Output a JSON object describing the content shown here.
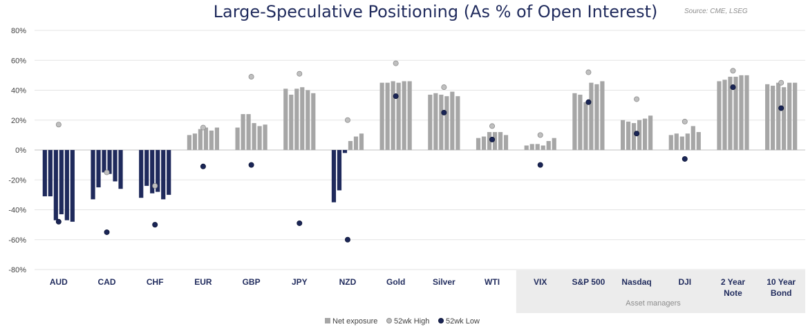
{
  "chart_data": {
    "type": "bar",
    "title": "Large-Speculative Positioning (As % of Open Interest)",
    "source": "Source: CME, LSEG",
    "ylim": [
      -80,
      80
    ],
    "yticks": [
      "80%",
      "60%",
      "40%",
      "20%",
      "0%",
      "-20%",
      "-40%",
      "-60%",
      "-80%"
    ],
    "ytick_values": [
      80,
      60,
      40,
      20,
      0,
      -20,
      -40,
      -60,
      -80
    ],
    "shaded_group_label": "Asset managers",
    "colors": {
      "positive": "#a6a6a6",
      "negative": "#1f2a5c",
      "high": "#bfbfbf",
      "low": "#1a2556",
      "shade": "#ececec"
    },
    "legend": [
      {
        "key": "net",
        "label": "Net exposure"
      },
      {
        "key": "high",
        "label": "52wk High"
      },
      {
        "key": "low",
        "label": "52wk Low"
      }
    ],
    "categories": [
      {
        "label": [
          "AUD"
        ],
        "net": [
          -31,
          -31,
          -47,
          -43,
          -47,
          -48
        ],
        "high": 17,
        "low": -48,
        "shaded": false
      },
      {
        "label": [
          "CAD"
        ],
        "net": [
          -33,
          -25,
          -15,
          -16,
          -21,
          -26
        ],
        "high": -15,
        "low": -55,
        "shaded": false
      },
      {
        "label": [
          "CHF"
        ],
        "net": [
          -32,
          -24,
          -29,
          -28,
          -33,
          -30
        ],
        "high": -24,
        "low": -50,
        "shaded": false
      },
      {
        "label": [
          "EUR"
        ],
        "net": [
          10,
          11,
          14,
          15,
          13,
          15
        ],
        "high": 15,
        "low": -11,
        "shaded": false
      },
      {
        "label": [
          "GBP"
        ],
        "net": [
          15,
          24,
          24,
          18,
          16,
          17
        ],
        "high": 49,
        "low": -10,
        "shaded": false
      },
      {
        "label": [
          "JPY"
        ],
        "net": [
          41,
          37,
          41,
          42,
          40,
          38
        ],
        "high": 51,
        "low": -49,
        "shaded": false
      },
      {
        "label": [
          "NZD"
        ],
        "net": [
          -35,
          -27,
          -2,
          6,
          9,
          11
        ],
        "high": 20,
        "low": -60,
        "shaded": false
      },
      {
        "label": [
          "Gold"
        ],
        "net": [
          45,
          45,
          46,
          45,
          46,
          46
        ],
        "high": 58,
        "low": 36,
        "shaded": false
      },
      {
        "label": [
          "Silver"
        ],
        "net": [
          37,
          38,
          37,
          36,
          39,
          36
        ],
        "high": 42,
        "low": 25,
        "shaded": false
      },
      {
        "label": [
          "WTI"
        ],
        "net": [
          8,
          9,
          12,
          12,
          12,
          10
        ],
        "high": 16,
        "low": 7,
        "shaded": false
      },
      {
        "label": [
          "VIX"
        ],
        "net": [
          3,
          4,
          4,
          3,
          6,
          8
        ],
        "high": 10,
        "low": -10,
        "shaded": true
      },
      {
        "label": [
          "S&P 500"
        ],
        "net": [
          38,
          37,
          32,
          45,
          44,
          46
        ],
        "high": 52,
        "low": 32,
        "shaded": true
      },
      {
        "label": [
          "Nasdaq"
        ],
        "net": [
          20,
          19,
          18,
          20,
          21,
          23
        ],
        "high": 34,
        "low": 11,
        "shaded": true
      },
      {
        "label": [
          "DJI"
        ],
        "net": [
          10,
          11,
          9,
          11,
          16,
          12
        ],
        "high": 19,
        "low": -6,
        "shaded": true
      },
      {
        "label": [
          "2 Year",
          "Note"
        ],
        "net": [
          46,
          47,
          49,
          49,
          50,
          50
        ],
        "high": 53,
        "low": 42,
        "shaded": true
      },
      {
        "label": [
          "10 Year",
          "Bond"
        ],
        "net": [
          44,
          43,
          45,
          42,
          45,
          45
        ],
        "high": 45,
        "low": 28,
        "shaded": true
      }
    ]
  }
}
